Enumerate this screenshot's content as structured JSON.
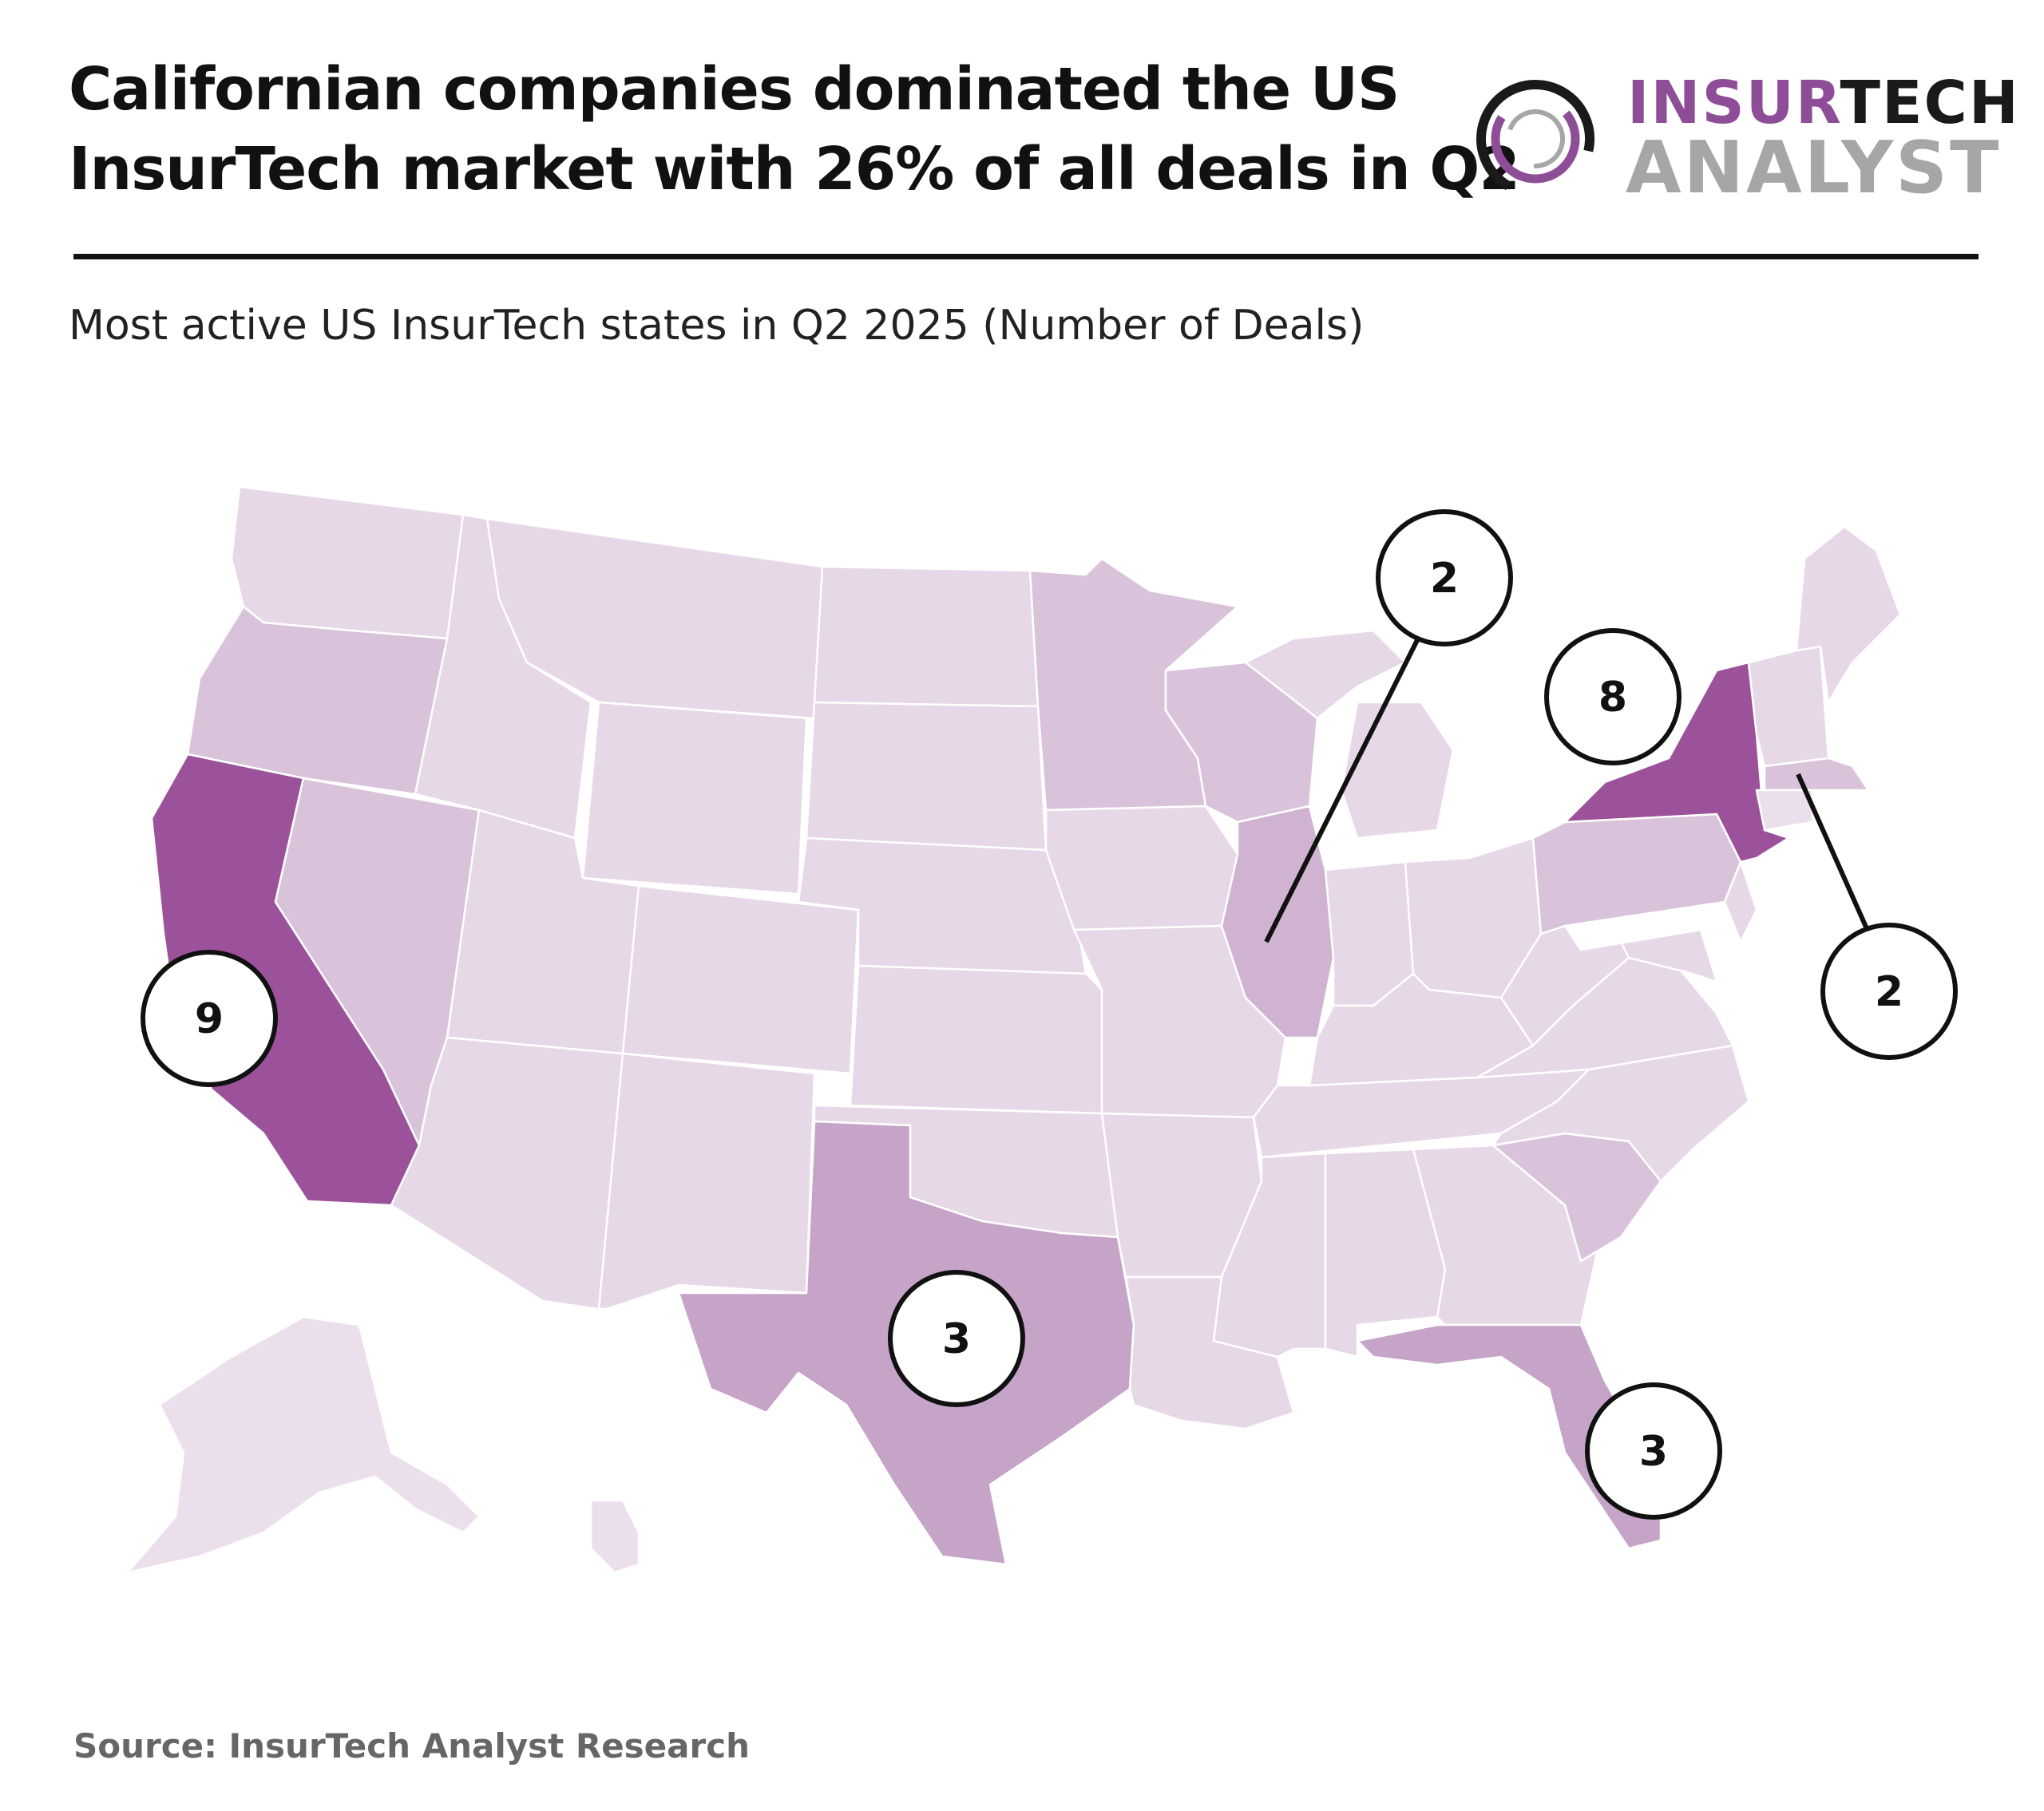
{
  "title": {
    "line1": "Californian companies dominated the US",
    "line2": "InsurTech market with 26% of all deals in Q2"
  },
  "logo": {
    "word1_part1": "INSUR",
    "word1_part2": "TECH",
    "word2": "ANALYST",
    "colors": {
      "purple": "#8e4d97",
      "black": "#1a1a1a",
      "grey": "#a6a6a6"
    }
  },
  "subtitle": "Most active US InsurTech states in Q2 2025 (Number of Deals)",
  "source": "Source: InsurTech Analyst Research",
  "legend_colors": {
    "very_high": "#9b529b",
    "mid": "#c6a4c8",
    "low_mid": "#cfb3d1",
    "low": "#d9c3da",
    "base": "#e6d8e6",
    "pale": "#ecdfec"
  },
  "callouts": [
    {
      "state": "California",
      "value": "9"
    },
    {
      "state": "New York",
      "value": "8"
    },
    {
      "state": "Texas",
      "value": "3"
    },
    {
      "state": "Florida",
      "value": "3"
    },
    {
      "state": "Illinois",
      "value": "2"
    },
    {
      "state": "Massachusetts",
      "value": "2"
    }
  ]
}
